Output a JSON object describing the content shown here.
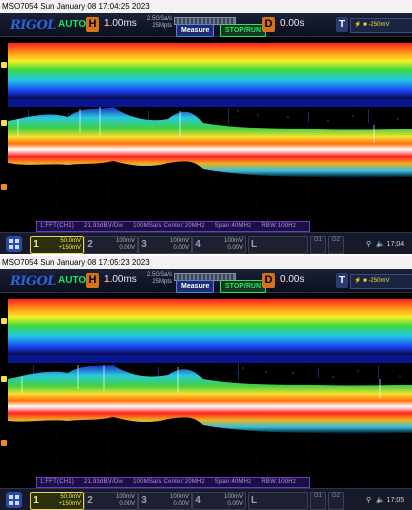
{
  "panels": [
    {
      "title": "MSO7054  Sun January 08 17:04:25 2023",
      "toolbar": {
        "logo": "RIGOL",
        "mode": "AUTO",
        "h_badge": "H",
        "timebase": "1.00ms",
        "sample_rate": "2.5GSa/s",
        "memory_depth": "25Mpts",
        "measure_label": "Measure",
        "stop_label": "STOP/RUN",
        "d_badge": "D",
        "delay": "0.00s",
        "t_badge": "T",
        "trigger_level": "-250mV"
      },
      "fft_info": {
        "source": "1:FFT(CH1)",
        "scale": "21.93dBV/Div",
        "sample": "100MSa/s Center:20MHz",
        "span": "Span:40MHz",
        "rbw": "RBW:100Hz"
      },
      "channels": {
        "ch1_num": "1",
        "ch1_scale": "50.0mV",
        "ch1_offset": "+150mV",
        "ch2_num": "2",
        "ch2_scale": "100mV",
        "ch2_offset": "0.00V",
        "ch3_num": "3",
        "ch3_scale": "100mV",
        "ch3_offset": "0.00V",
        "ch4_num": "4",
        "ch4_scale": "100mV",
        "ch4_offset": "0.00V",
        "logic_label": "L",
        "g1": "G1",
        "g2": "G2"
      },
      "clock": "17:04"
    },
    {
      "title": "MSO7054  Sun January 08 17:05:23 2023",
      "toolbar": {
        "logo": "RIGOL",
        "mode": "AUTO",
        "h_badge": "H",
        "timebase": "1.00ms",
        "sample_rate": "2.5GSa/s",
        "memory_depth": "25Mpts",
        "measure_label": "Measure",
        "stop_label": "STOP/RUN",
        "d_badge": "D",
        "delay": "0.00s",
        "t_badge": "T",
        "trigger_level": "-250mV"
      },
      "fft_info": {
        "source": "1:FFT(CH1)",
        "scale": "21.93dBV/Div",
        "sample": "100MSa/s Center:20MHz",
        "span": "Span:40MHz",
        "rbw": "RBW:100Hz"
      },
      "channels": {
        "ch1_num": "1",
        "ch1_scale": "50.0mV",
        "ch1_offset": "+150mV",
        "ch2_num": "2",
        "ch2_scale": "100mV",
        "ch2_offset": "0.00V",
        "ch3_num": "3",
        "ch3_scale": "100mV",
        "ch3_offset": "0.00V",
        "ch4_num": "4",
        "ch4_scale": "100mV",
        "ch4_offset": "0.00V",
        "logic_label": "L",
        "g1": "G1",
        "g2": "G2"
      },
      "clock": "17:05"
    }
  ],
  "colors": {
    "accent_orange": "#d6721c",
    "ch1_yellow": "#f7e84c",
    "run_green": "#34e06a",
    "fft_purple": "#b98cff",
    "logo_blue": "#2f5ee0"
  }
}
